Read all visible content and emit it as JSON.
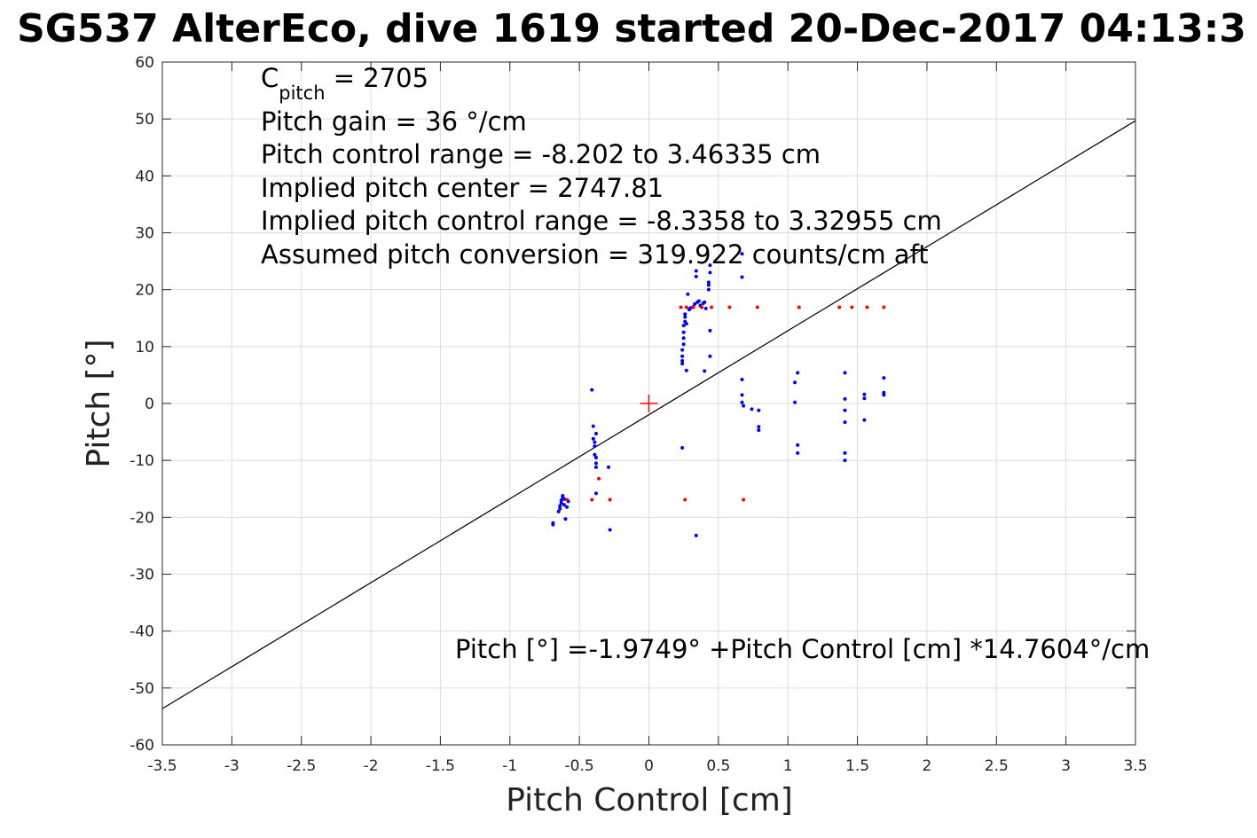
{
  "chart_data": {
    "type": "scatter",
    "title": "SG537 AlterEco, dive 1619 started 20-Dec-2017 04:13:3",
    "xlabel": "Pitch Control [cm]",
    "ylabel": "Pitch [°]",
    "xlim": [
      -3.5,
      3.5
    ],
    "ylim": [
      -60,
      60
    ],
    "xticks": [
      -3.5,
      -3,
      -2.5,
      -2,
      -1.5,
      -1,
      -0.5,
      0,
      0.5,
      1,
      1.5,
      2,
      2.5,
      3,
      3.5
    ],
    "xtick_labels": [
      "-3.5",
      "-3",
      "-2.5",
      "-2",
      "-1.5",
      "-1",
      "-0.5",
      "0",
      "0.5",
      "1",
      "1.5",
      "2",
      "2.5",
      "3",
      "3.5"
    ],
    "yticks": [
      -60,
      -50,
      -40,
      -30,
      -20,
      -10,
      0,
      10,
      20,
      30,
      40,
      50,
      60
    ],
    "ytick_labels": [
      "-60",
      "-50",
      "-40",
      "-30",
      "-20",
      "-10",
      "0",
      "10",
      "20",
      "30",
      "40",
      "50",
      "60"
    ],
    "grid": true,
    "colors": {
      "blue_points": "#0000ff",
      "red_points": "#ff0000",
      "fit_line": "#000000",
      "center_marker": "#ff0000",
      "grid": "#dcdcdc"
    },
    "annotations": {
      "c_pitch_main": "C",
      "c_pitch_sub": "pitch",
      "c_pitch_value": " = 2705",
      "pitch_gain": "Pitch gain = 36 °/cm",
      "control_range": "Pitch control range = -8.202 to 3.46335 cm",
      "implied_center": "Implied pitch center = 2747.81",
      "implied_range": "Implied pitch control range = -8.3358 to 3.32955 cm",
      "conversion": "Assumed pitch conversion = 319.922 counts/cm aft",
      "fit_equation": "Pitch [°] =-1.9749° +Pitch Control [cm] *14.7604°/cm"
    },
    "fit": {
      "intercept": -1.9749,
      "slope": 14.7604
    },
    "center_marker": {
      "x": 0,
      "y": 0
    },
    "series": [
      {
        "color": "blue",
        "points": [
          [
            -0.69,
            -21
          ],
          [
            -0.69,
            -21.3
          ],
          [
            -0.65,
            -19
          ],
          [
            -0.64,
            -18.5
          ],
          [
            -0.64,
            -18
          ],
          [
            -0.63,
            -17.5
          ],
          [
            -0.63,
            -17
          ],
          [
            -0.62,
            -16.5
          ],
          [
            -0.62,
            -16.2
          ],
          [
            -0.61,
            -16.8
          ],
          [
            -0.61,
            -17.8
          ],
          [
            -0.6,
            -20.3
          ],
          [
            -0.59,
            -18.2
          ],
          [
            -0.58,
            -17.2
          ],
          [
            -0.41,
            2.4
          ],
          [
            -0.4,
            -4
          ],
          [
            -0.4,
            -6.2
          ],
          [
            -0.39,
            -6.8
          ],
          [
            -0.39,
            -7.5
          ],
          [
            -0.39,
            -9
          ],
          [
            -0.38,
            -5.3
          ],
          [
            -0.38,
            -9.5
          ],
          [
            -0.38,
            -10.5
          ],
          [
            -0.38,
            -11.2
          ],
          [
            -0.38,
            -15.8
          ],
          [
            -0.29,
            -11.2
          ],
          [
            -0.28,
            -22.2
          ],
          [
            0.24,
            7
          ],
          [
            0.24,
            7.5
          ],
          [
            0.24,
            8.3
          ],
          [
            0.24,
            9.4
          ],
          [
            0.25,
            10.4
          ],
          [
            0.25,
            11.5
          ],
          [
            0.25,
            12.5
          ],
          [
            0.25,
            13.7
          ],
          [
            0.26,
            14.4
          ],
          [
            0.26,
            15.2
          ],
          [
            0.26,
            15.7
          ],
          [
            0.27,
            14
          ],
          [
            0.28,
            19.2
          ],
          [
            0.29,
            16.5
          ],
          [
            0.3,
            16.8
          ],
          [
            0.32,
            17
          ],
          [
            0.33,
            17.5
          ],
          [
            0.34,
            22.3
          ],
          [
            0.34,
            23.3
          ],
          [
            0.35,
            17.8
          ],
          [
            0.36,
            18
          ],
          [
            0.37,
            17.2
          ],
          [
            0.38,
            16.9
          ],
          [
            0.39,
            17.6
          ],
          [
            0.4,
            17.8
          ],
          [
            0.41,
            16.7
          ],
          [
            0.43,
            20
          ],
          [
            0.43,
            20.8
          ],
          [
            0.43,
            21.3
          ],
          [
            0.44,
            23
          ],
          [
            0.44,
            24.3
          ],
          [
            0.44,
            12.8
          ],
          [
            0.44,
            8.3
          ],
          [
            0.4,
            5.7
          ],
          [
            0.27,
            5.8
          ],
          [
            0.24,
            -7.8
          ],
          [
            0.34,
            -23.2
          ],
          [
            0.67,
            22.2
          ],
          [
            0.67,
            26.3
          ],
          [
            0.67,
            4.2
          ],
          [
            0.67,
            1.5
          ],
          [
            0.67,
            0.2
          ],
          [
            0.68,
            -0.4
          ],
          [
            0.74,
            -1
          ],
          [
            0.79,
            -1.2
          ],
          [
            0.79,
            -4.1
          ],
          [
            0.79,
            -4.7
          ],
          [
            1.05,
            3.7
          ],
          [
            1.05,
            0.2
          ],
          [
            1.07,
            5.4
          ],
          [
            1.07,
            -7.3
          ],
          [
            1.07,
            -8.7
          ],
          [
            1.41,
            5.4
          ],
          [
            1.41,
            0.8
          ],
          [
            1.41,
            -1.2
          ],
          [
            1.41,
            -3.3
          ],
          [
            1.41,
            -8.7
          ],
          [
            1.41,
            -10
          ],
          [
            1.55,
            1.6
          ],
          [
            1.55,
            0.9
          ],
          [
            1.55,
            -2.9
          ],
          [
            1.69,
            4.5
          ],
          [
            1.69,
            1.9
          ],
          [
            1.69,
            1.5
          ]
        ]
      },
      {
        "color": "red",
        "points": [
          [
            -0.59,
            -16.9
          ],
          [
            -0.41,
            -16.9
          ],
          [
            -0.36,
            -13.2
          ],
          [
            -0.28,
            -16.9
          ],
          [
            0.26,
            -16.9
          ],
          [
            0.68,
            -16.9
          ],
          [
            0.23,
            16.9
          ],
          [
            0.27,
            16.9
          ],
          [
            0.32,
            16.9
          ],
          [
            0.38,
            16.9
          ],
          [
            0.45,
            16.9
          ],
          [
            0.58,
            16.9
          ],
          [
            0.78,
            16.9
          ],
          [
            1.08,
            16.9
          ],
          [
            1.37,
            16.9
          ],
          [
            1.46,
            16.9
          ],
          [
            1.57,
            16.9
          ],
          [
            1.69,
            16.9
          ]
        ]
      }
    ]
  }
}
